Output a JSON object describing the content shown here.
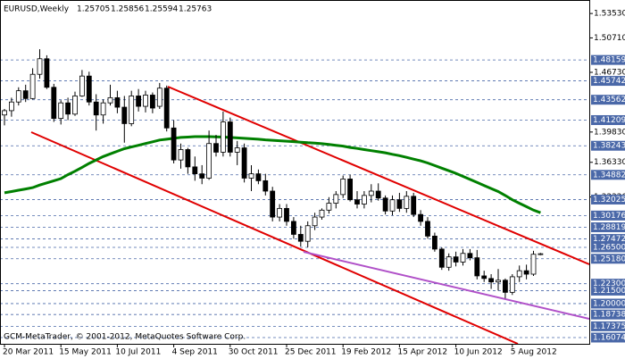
{
  "chart_data": {
    "type": "candlestick",
    "title": "EURUSD,Weekly",
    "header_ohlc": [
      1.25705,
      1.25856,
      1.25594,
      1.25763
    ],
    "footer": "GCM-MetaTrader, © 2001-2012, MetaQuotes Software Corp.",
    "ylim": [
      1.1535,
      1.5509
    ],
    "yticks": [
      {
        "value": 1.5353,
        "label": "1.53530"
      },
      {
        "value": 1.5071,
        "label": "1.50710"
      },
      {
        "value": 1.4673,
        "label": "1.46730"
      },
      {
        "value": 1.3983,
        "label": "1.39830"
      },
      {
        "value": 1.3633,
        "label": "1.36330"
      },
      {
        "value": 1.3232,
        "label": "1.32320"
      }
    ],
    "levels": [
      {
        "value": 1.48159,
        "label": "1.48159"
      },
      {
        "value": 1.45742,
        "label": "1.45742"
      },
      {
        "value": 1.43562,
        "label": "1.43562"
      },
      {
        "value": 1.41209,
        "label": "1.41209"
      },
      {
        "value": 1.38243,
        "label": "1.38243"
      },
      {
        "value": 1.34882,
        "label": "1.34882"
      },
      {
        "value": 1.32025,
        "label": "1.32025"
      },
      {
        "value": 1.30176,
        "label": "1.30176"
      },
      {
        "value": 1.28819,
        "label": "1.28819"
      },
      {
        "value": 1.27472,
        "label": "1.27472"
      },
      {
        "value": 1.265,
        "label": "1.26500"
      },
      {
        "value": 1.2518,
        "label": "1.25180"
      },
      {
        "value": 1.223,
        "label": "1.22300"
      },
      {
        "value": 1.215,
        "label": "1.21500"
      },
      {
        "value": 1.2,
        "label": "1.20000"
      },
      {
        "value": 1.18738,
        "label": "1.18738"
      },
      {
        "value": 1.17375,
        "label": "1.17375"
      },
      {
        "value": 1.16074,
        "label": "1.16074"
      }
    ],
    "level_color": "#4a68a8",
    "xticks": [
      {
        "value": 0,
        "label": "20 Mar 2011"
      },
      {
        "value": 8,
        "label": "15 May 2011"
      },
      {
        "value": 16,
        "label": "10 Jul 2011"
      },
      {
        "value": 24,
        "label": "4 Sep 2011"
      },
      {
        "value": 32,
        "label": "30 Oct 2011"
      },
      {
        "value": 40,
        "label": "25 Dec 2011"
      },
      {
        "value": 48,
        "label": "19 Feb 2012"
      },
      {
        "value": 56,
        "label": "15 Apr 2012"
      },
      {
        "value": 64,
        "label": "10 Jun 2012"
      },
      {
        "value": 72,
        "label": "5 Aug 2012"
      }
    ],
    "candles": [
      [
        1.418,
        1.425,
        1.406,
        1.423
      ],
      [
        1.423,
        1.438,
        1.416,
        1.433
      ],
      [
        1.433,
        1.45,
        1.429,
        1.446
      ],
      [
        1.446,
        1.453,
        1.433,
        1.437
      ],
      [
        1.437,
        1.472,
        1.436,
        1.465
      ],
      [
        1.465,
        1.494,
        1.46,
        1.483
      ],
      [
        1.483,
        1.487,
        1.448,
        1.45
      ],
      [
        1.45,
        1.454,
        1.41,
        1.414
      ],
      [
        1.414,
        1.435,
        1.407,
        1.432
      ],
      [
        1.432,
        1.438,
        1.412,
        1.419
      ],
      [
        1.419,
        1.445,
        1.417,
        1.44
      ],
      [
        1.44,
        1.47,
        1.439,
        1.463
      ],
      [
        1.463,
        1.468,
        1.429,
        1.433
      ],
      [
        1.433,
        1.442,
        1.4,
        1.418
      ],
      [
        1.418,
        1.436,
        1.408,
        1.432
      ],
      [
        1.432,
        1.453,
        1.429,
        1.438
      ],
      [
        1.438,
        1.446,
        1.42,
        1.427
      ],
      [
        1.427,
        1.44,
        1.386,
        1.408
      ],
      [
        1.408,
        1.446,
        1.405,
        1.44
      ],
      [
        1.44,
        1.448,
        1.422,
        1.428
      ],
      [
        1.428,
        1.446,
        1.421,
        1.441
      ],
      [
        1.441,
        1.444,
        1.42,
        1.426
      ],
      [
        1.428,
        1.455,
        1.425,
        1.449
      ],
      [
        1.449,
        1.452,
        1.399,
        1.403
      ],
      [
        1.403,
        1.412,
        1.362,
        1.366
      ],
      [
        1.366,
        1.385,
        1.356,
        1.378
      ],
      [
        1.378,
        1.38,
        1.35,
        1.358
      ],
      [
        1.358,
        1.37,
        1.342,
        1.35
      ],
      [
        1.35,
        1.36,
        1.338,
        1.345
      ],
      [
        1.345,
        1.4,
        1.343,
        1.385
      ],
      [
        1.385,
        1.395,
        1.37,
        1.375
      ],
      [
        1.375,
        1.422,
        1.37,
        1.41
      ],
      [
        1.41,
        1.415,
        1.37,
        1.375
      ],
      [
        1.375,
        1.388,
        1.36,
        1.38
      ],
      [
        1.38,
        1.385,
        1.34,
        1.345
      ],
      [
        1.345,
        1.36,
        1.33,
        1.35
      ],
      [
        1.35,
        1.355,
        1.338,
        1.342
      ],
      [
        1.342,
        1.35,
        1.325,
        1.33
      ],
      [
        1.33,
        1.335,
        1.295,
        1.3
      ],
      [
        1.3,
        1.315,
        1.295,
        1.31
      ],
      [
        1.31,
        1.315,
        1.29,
        1.295
      ],
      [
        1.295,
        1.3,
        1.275,
        1.28
      ],
      [
        1.28,
        1.29,
        1.266,
        1.272
      ],
      [
        1.272,
        1.295,
        1.265,
        1.29
      ],
      [
        1.29,
        1.305,
        1.285,
        1.3
      ],
      [
        1.3,
        1.31,
        1.297,
        1.308
      ],
      [
        1.308,
        1.323,
        1.304,
        1.316
      ],
      [
        1.316,
        1.33,
        1.31,
        1.326
      ],
      [
        1.326,
        1.348,
        1.322,
        1.344
      ],
      [
        1.344,
        1.349,
        1.318,
        1.32
      ],
      [
        1.32,
        1.33,
        1.31,
        1.315
      ],
      [
        1.315,
        1.33,
        1.31,
        1.325
      ],
      [
        1.325,
        1.338,
        1.317,
        1.33
      ],
      [
        1.33,
        1.339,
        1.319,
        1.322
      ],
      [
        1.322,
        1.325,
        1.303,
        1.307
      ],
      [
        1.307,
        1.325,
        1.302,
        1.32
      ],
      [
        1.32,
        1.328,
        1.306,
        1.31
      ],
      [
        1.31,
        1.33,
        1.305,
        1.324
      ],
      [
        1.324,
        1.328,
        1.3,
        1.303
      ],
      [
        1.303,
        1.308,
        1.29,
        1.295
      ],
      [
        1.295,
        1.3,
        1.275,
        1.278
      ],
      [
        1.278,
        1.282,
        1.26,
        1.263
      ],
      [
        1.263,
        1.265,
        1.239,
        1.242
      ],
      [
        1.242,
        1.258,
        1.238,
        1.254
      ],
      [
        1.254,
        1.26,
        1.243,
        1.248
      ],
      [
        1.248,
        1.263,
        1.244,
        1.258
      ],
      [
        1.258,
        1.263,
        1.25,
        1.253
      ],
      [
        1.253,
        1.262,
        1.228,
        1.232
      ],
      [
        1.232,
        1.238,
        1.225,
        1.229
      ],
      [
        1.229,
        1.234,
        1.217,
        1.225
      ],
      [
        1.225,
        1.24,
        1.215,
        1.227
      ],
      [
        1.227,
        1.229,
        1.206,
        1.213
      ],
      [
        1.213,
        1.234,
        1.21,
        1.231
      ],
      [
        1.231,
        1.244,
        1.225,
        1.238
      ],
      [
        1.238,
        1.245,
        1.228,
        1.234
      ],
      [
        1.234,
        1.261,
        1.232,
        1.257
      ],
      [
        1.25705,
        1.25856,
        1.25594,
        1.25763
      ]
    ],
    "moving_average": {
      "color": "#008000",
      "values": [
        1.328,
        1.3295,
        1.331,
        1.3325,
        1.334,
        1.337,
        1.3395,
        1.342,
        1.3445,
        1.349,
        1.353,
        1.3575,
        1.362,
        1.366,
        1.37,
        1.373,
        1.376,
        1.379,
        1.381,
        1.383,
        1.385,
        1.387,
        1.389,
        1.39,
        1.391,
        1.392,
        1.3925,
        1.393,
        1.393,
        1.393,
        1.3928,
        1.3925,
        1.392,
        1.3915,
        1.391,
        1.3905,
        1.39,
        1.3893,
        1.3887,
        1.3882,
        1.3877,
        1.3872,
        1.3866,
        1.386,
        1.3855,
        1.3848,
        1.384,
        1.383,
        1.382,
        1.3805,
        1.3793,
        1.378,
        1.3768,
        1.3755,
        1.3743,
        1.3725,
        1.371,
        1.369,
        1.367,
        1.365,
        1.3625,
        1.3595,
        1.3565,
        1.3535,
        1.3505,
        1.347,
        1.3435,
        1.34,
        1.3365,
        1.333,
        1.3295,
        1.325,
        1.32,
        1.316,
        1.312,
        1.308,
        1.305
      ]
    }
  }
}
